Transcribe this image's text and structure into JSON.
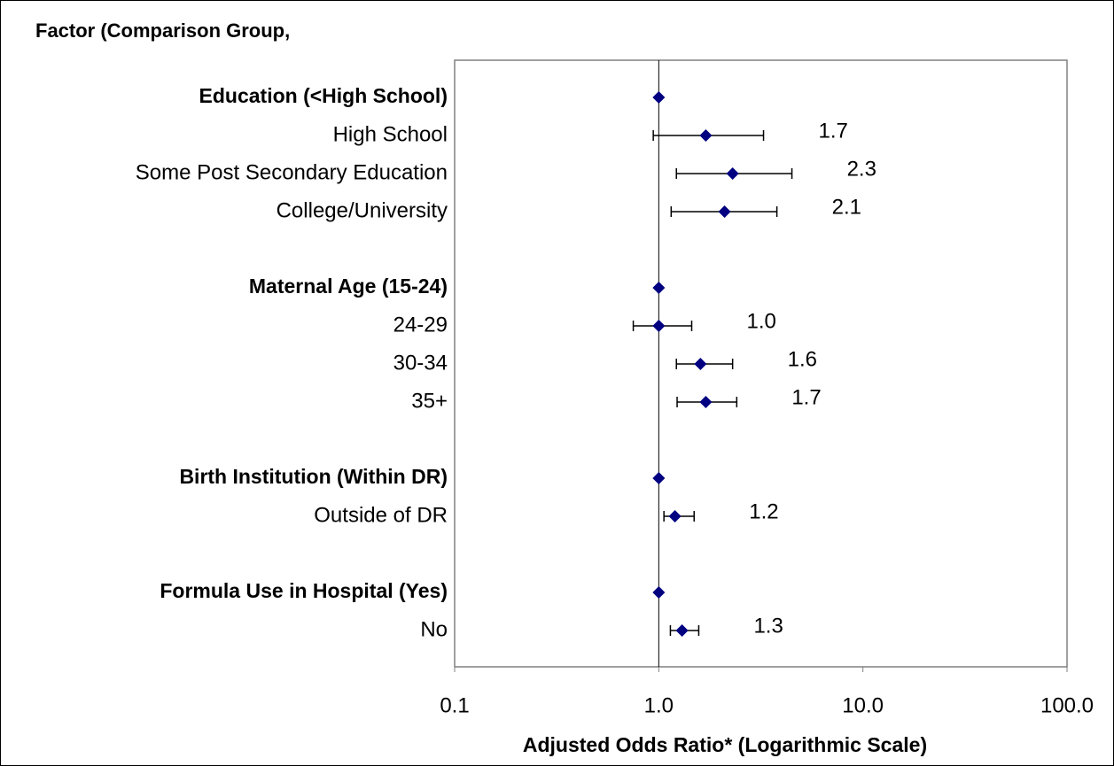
{
  "chart_data": {
    "type": "forest",
    "title": "Factor (Comparison Group,",
    "xlabel": "Adjusted Odds Ratio* (Logarithmic Scale)",
    "categories": [
      "Education (<High School)",
      "High School",
      "Some Post Secondary Education",
      "College/University",
      null,
      "Maternal Age (15-24)",
      "24-29",
      "30-34",
      "35+",
      null,
      "Birth Institution (Within DR)",
      "Outside of DR",
      null,
      "Formula Use in Hospital (Yes)",
      "No"
    ],
    "header_rows": [
      true,
      false,
      false,
      false,
      false,
      true,
      false,
      false,
      false,
      false,
      true,
      false,
      false,
      true,
      false
    ],
    "values": [
      1,
      1.7,
      2.3,
      2.1,
      null,
      1,
      1.0,
      1.6,
      1.7,
      null,
      1,
      1.2,
      null,
      1,
      1.3
    ],
    "value_labels": [
      null,
      "1.7",
      "2.3",
      "2.1",
      null,
      null,
      "1.0",
      "1.6",
      "1.7",
      null,
      null,
      "1.2",
      null,
      null,
      "1.3"
    ],
    "ci_low": [
      null,
      0.94,
      1.22,
      1.15,
      null,
      null,
      0.75,
      1.22,
      1.23,
      null,
      null,
      1.06,
      null,
      null,
      1.14
    ],
    "ci_high": [
      null,
      3.26,
      4.49,
      3.79,
      null,
      null,
      1.45,
      2.3,
      2.41,
      null,
      null,
      1.49,
      null,
      null,
      1.57
    ],
    "color": "#000080",
    "xscale": "log",
    "xlim": [
      0.1,
      100
    ],
    "xticks": [
      {
        "value": 0.1,
        "label": "0.1"
      },
      {
        "value": 1,
        "label": "1.0"
      },
      {
        "value": 10,
        "label": "10.0"
      },
      {
        "value": 100,
        "label": "100.0"
      }
    ],
    "reference_line": 1
  }
}
